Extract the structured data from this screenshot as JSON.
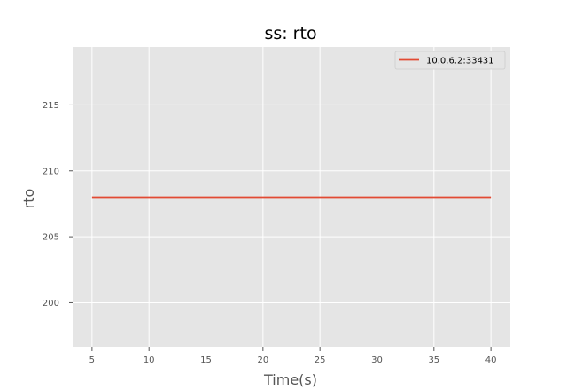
{
  "chart_data": {
    "type": "line",
    "title": "ss: rto",
    "xlabel": "Time(s)",
    "ylabel": "rto",
    "xlim": [
      3.3,
      41.7
    ],
    "ylim": [
      196.6,
      219.4
    ],
    "xticks": [
      5,
      10,
      15,
      20,
      25,
      30,
      35,
      40
    ],
    "yticks": [
      200,
      205,
      210,
      215
    ],
    "grid": true,
    "legend_position": "top-right",
    "series": [
      {
        "name": "10.0.6.2:33431",
        "color": "#e24a33",
        "x": [
          5,
          40
        ],
        "y": [
          208,
          208
        ]
      }
    ]
  },
  "style": {
    "background": "#ffffff",
    "plot_background": "#e5e5e5",
    "grid_color": "#ffffff",
    "text_color": "#555555"
  }
}
